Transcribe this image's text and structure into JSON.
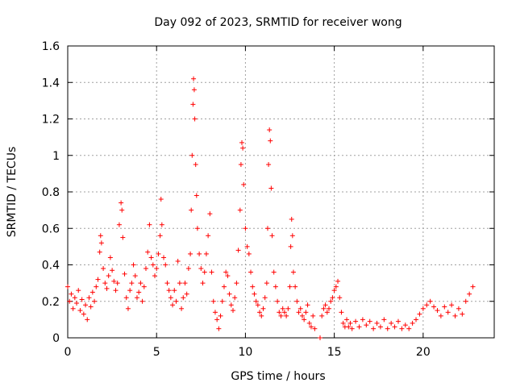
{
  "chart_data": {
    "type": "scatter",
    "title": "Day 092 of 2023, SRMTID for receiver wong",
    "xlabel": "GPS time / hours",
    "ylabel": "SRMTID / TECUs",
    "xlim": [
      0,
      24
    ],
    "ylim": [
      0,
      1.6
    ],
    "xticks": [
      0,
      5,
      10,
      15,
      20
    ],
    "xtick_labels": [
      "0",
      "5",
      "10",
      "15",
      "20"
    ],
    "yticks": [
      0,
      0.2,
      0.4,
      0.6,
      0.8,
      1.0,
      1.2,
      1.4,
      1.6
    ],
    "ytick_labels": [
      "0",
      "0.2",
      "0.4",
      "0.6",
      "0.8",
      "1",
      "1.2",
      "1.4",
      "1.6"
    ],
    "grid": true,
    "marker": "+",
    "color": "#ff0000",
    "series": [
      {
        "name": "SRMTID",
        "points": [
          [
            0.0,
            0.28
          ],
          [
            0.1,
            0.2
          ],
          [
            0.2,
            0.24
          ],
          [
            0.3,
            0.16
          ],
          [
            0.4,
            0.22
          ],
          [
            0.5,
            0.19
          ],
          [
            0.6,
            0.26
          ],
          [
            0.7,
            0.15
          ],
          [
            0.8,
            0.21
          ],
          [
            0.9,
            0.13
          ],
          [
            1.0,
            0.18
          ],
          [
            1.1,
            0.1
          ],
          [
            1.2,
            0.22
          ],
          [
            1.3,
            0.17
          ],
          [
            1.4,
            0.25
          ],
          [
            1.5,
            0.2
          ],
          [
            1.6,
            0.28
          ],
          [
            1.7,
            0.32
          ],
          [
            1.8,
            0.47
          ],
          [
            1.85,
            0.56
          ],
          [
            1.9,
            0.52
          ],
          [
            2.0,
            0.38
          ],
          [
            2.1,
            0.3
          ],
          [
            2.2,
            0.27
          ],
          [
            2.3,
            0.34
          ],
          [
            2.4,
            0.44
          ],
          [
            2.5,
            0.37
          ],
          [
            2.6,
            0.31
          ],
          [
            2.7,
            0.26
          ],
          [
            2.8,
            0.3
          ],
          [
            2.9,
            0.62
          ],
          [
            3.0,
            0.74
          ],
          [
            3.05,
            0.7
          ],
          [
            3.1,
            0.55
          ],
          [
            3.2,
            0.35
          ],
          [
            3.3,
            0.22
          ],
          [
            3.4,
            0.16
          ],
          [
            3.5,
            0.26
          ],
          [
            3.6,
            0.3
          ],
          [
            3.7,
            0.4
          ],
          [
            3.8,
            0.34
          ],
          [
            3.9,
            0.22
          ],
          [
            4.0,
            0.25
          ],
          [
            4.1,
            0.3
          ],
          [
            4.2,
            0.2
          ],
          [
            4.3,
            0.28
          ],
          [
            4.4,
            0.38
          ],
          [
            4.5,
            0.47
          ],
          [
            4.6,
            0.62
          ],
          [
            4.7,
            0.44
          ],
          [
            4.8,
            0.4
          ],
          [
            4.9,
            0.34
          ],
          [
            5.0,
            0.38
          ],
          [
            5.1,
            0.46
          ],
          [
            5.2,
            0.56
          ],
          [
            5.25,
            0.76
          ],
          [
            5.3,
            0.62
          ],
          [
            5.4,
            0.44
          ],
          [
            5.5,
            0.4
          ],
          [
            5.6,
            0.3
          ],
          [
            5.7,
            0.26
          ],
          [
            5.8,
            0.22
          ],
          [
            5.9,
            0.18
          ],
          [
            6.0,
            0.26
          ],
          [
            6.1,
            0.2
          ],
          [
            6.2,
            0.42
          ],
          [
            6.3,
            0.3
          ],
          [
            6.4,
            0.16
          ],
          [
            6.5,
            0.22
          ],
          [
            6.6,
            0.3
          ],
          [
            6.7,
            0.24
          ],
          [
            6.8,
            0.38
          ],
          [
            6.9,
            0.46
          ],
          [
            6.95,
            0.7
          ],
          [
            7.0,
            1.0
          ],
          [
            7.05,
            1.28
          ],
          [
            7.08,
            1.42
          ],
          [
            7.12,
            1.36
          ],
          [
            7.15,
            1.2
          ],
          [
            7.2,
            0.95
          ],
          [
            7.25,
            0.78
          ],
          [
            7.3,
            0.6
          ],
          [
            7.4,
            0.46
          ],
          [
            7.5,
            0.38
          ],
          [
            7.6,
            0.3
          ],
          [
            7.7,
            0.36
          ],
          [
            7.8,
            0.46
          ],
          [
            7.9,
            0.56
          ],
          [
            8.0,
            0.68
          ],
          [
            8.1,
            0.36
          ],
          [
            8.2,
            0.2
          ],
          [
            8.3,
            0.14
          ],
          [
            8.4,
            0.1
          ],
          [
            8.5,
            0.05
          ],
          [
            8.6,
            0.12
          ],
          [
            8.7,
            0.2
          ],
          [
            8.8,
            0.28
          ],
          [
            8.9,
            0.36
          ],
          [
            9.0,
            0.34
          ],
          [
            9.1,
            0.24
          ],
          [
            9.2,
            0.18
          ],
          [
            9.3,
            0.15
          ],
          [
            9.4,
            0.22
          ],
          [
            9.5,
            0.3
          ],
          [
            9.6,
            0.48
          ],
          [
            9.7,
            0.7
          ],
          [
            9.75,
            0.95
          ],
          [
            9.8,
            1.07
          ],
          [
            9.85,
            1.04
          ],
          [
            9.9,
            0.84
          ],
          [
            10.0,
            0.6
          ],
          [
            10.1,
            0.5
          ],
          [
            10.2,
            0.46
          ],
          [
            10.3,
            0.36
          ],
          [
            10.4,
            0.28
          ],
          [
            10.5,
            0.24
          ],
          [
            10.6,
            0.2
          ],
          [
            10.7,
            0.18
          ],
          [
            10.8,
            0.14
          ],
          [
            10.9,
            0.12
          ],
          [
            11.0,
            0.16
          ],
          [
            11.1,
            0.22
          ],
          [
            11.2,
            0.3
          ],
          [
            11.25,
            0.6
          ],
          [
            11.3,
            0.95
          ],
          [
            11.35,
            1.14
          ],
          [
            11.4,
            1.08
          ],
          [
            11.45,
            0.82
          ],
          [
            11.5,
            0.56
          ],
          [
            11.6,
            0.36
          ],
          [
            11.7,
            0.28
          ],
          [
            11.8,
            0.2
          ],
          [
            11.9,
            0.14
          ],
          [
            12.0,
            0.12
          ],
          [
            12.1,
            0.16
          ],
          [
            12.2,
            0.14
          ],
          [
            12.3,
            0.12
          ],
          [
            12.4,
            0.16
          ],
          [
            12.5,
            0.28
          ],
          [
            12.55,
            0.5
          ],
          [
            12.6,
            0.65
          ],
          [
            12.65,
            0.56
          ],
          [
            12.7,
            0.36
          ],
          [
            12.8,
            0.28
          ],
          [
            12.9,
            0.2
          ],
          [
            13.0,
            0.14
          ],
          [
            13.1,
            0.16
          ],
          [
            13.2,
            0.12
          ],
          [
            13.3,
            0.1
          ],
          [
            13.4,
            0.14
          ],
          [
            13.5,
            0.18
          ],
          [
            13.6,
            0.08
          ],
          [
            13.7,
            0.06
          ],
          [
            13.8,
            0.12
          ],
          [
            13.9,
            0.05
          ],
          [
            14.2,
            0.0
          ],
          [
            14.3,
            0.12
          ],
          [
            14.4,
            0.16
          ],
          [
            14.5,
            0.18
          ],
          [
            14.6,
            0.14
          ],
          [
            14.7,
            0.16
          ],
          [
            14.8,
            0.2
          ],
          [
            14.9,
            0.22
          ],
          [
            15.0,
            0.26
          ],
          [
            15.1,
            0.28
          ],
          [
            15.2,
            0.31
          ],
          [
            15.3,
            0.22
          ],
          [
            15.4,
            0.14
          ],
          [
            15.5,
            0.08
          ],
          [
            15.6,
            0.06
          ],
          [
            15.7,
            0.1
          ],
          [
            15.8,
            0.06
          ],
          [
            15.9,
            0.08
          ],
          [
            16.0,
            0.05
          ],
          [
            16.2,
            0.09
          ],
          [
            16.4,
            0.06
          ],
          [
            16.6,
            0.1
          ],
          [
            16.8,
            0.07
          ],
          [
            17.0,
            0.09
          ],
          [
            17.2,
            0.05
          ],
          [
            17.4,
            0.08
          ],
          [
            17.6,
            0.06
          ],
          [
            17.8,
            0.1
          ],
          [
            18.0,
            0.05
          ],
          [
            18.2,
            0.08
          ],
          [
            18.4,
            0.06
          ],
          [
            18.6,
            0.09
          ],
          [
            18.8,
            0.05
          ],
          [
            19.0,
            0.07
          ],
          [
            19.2,
            0.05
          ],
          [
            19.4,
            0.08
          ],
          [
            19.6,
            0.1
          ],
          [
            19.8,
            0.13
          ],
          [
            20.0,
            0.16
          ],
          [
            20.2,
            0.18
          ],
          [
            20.4,
            0.2
          ],
          [
            20.6,
            0.17
          ],
          [
            20.8,
            0.15
          ],
          [
            21.0,
            0.12
          ],
          [
            21.2,
            0.17
          ],
          [
            21.4,
            0.14
          ],
          [
            21.6,
            0.18
          ],
          [
            21.8,
            0.12
          ],
          [
            22.0,
            0.16
          ],
          [
            22.2,
            0.13
          ],
          [
            22.4,
            0.2
          ],
          [
            22.6,
            0.24
          ],
          [
            22.8,
            0.28
          ]
        ]
      }
    ]
  }
}
